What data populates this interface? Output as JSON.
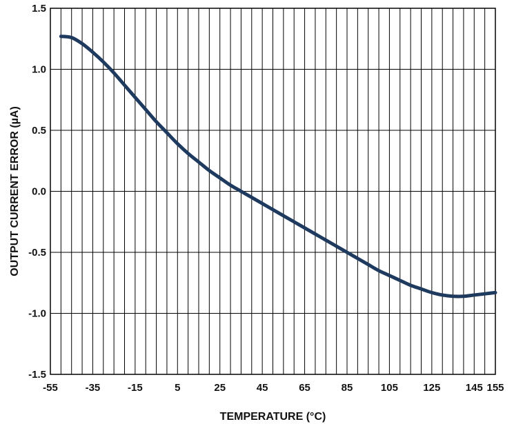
{
  "chart_data": {
    "type": "line",
    "title": "",
    "xlabel": "TEMPERATURE (°C)",
    "ylabel": "OUTPUT CURRENT ERROR (µA)",
    "xlim": [
      -55,
      155
    ],
    "ylim": [
      -1.5,
      1.5
    ],
    "xticks": [
      -55,
      -35,
      -15,
      5,
      25,
      45,
      65,
      85,
      105,
      125,
      145,
      155
    ],
    "xtick_labels": [
      "-55",
      "-35",
      "-15",
      "5",
      "25",
      "45",
      "65",
      "85",
      "105",
      "125",
      "145",
      "155"
    ],
    "yticks": [
      1.5,
      1.0,
      0.5,
      0.0,
      -0.5,
      -1.0,
      -1.5
    ],
    "ytick_labels": [
      "1.5",
      "1.0",
      "0.5",
      "0.0",
      "-0.5",
      "-1.0",
      "-1.5"
    ],
    "grid": true,
    "minor_x_grid_step": 5,
    "line_color": "#1f3a5f",
    "series": [
      {
        "name": "",
        "x": [
          -50,
          -45,
          -40,
          -35,
          -30,
          -25,
          -20,
          -15,
          -10,
          -5,
          0,
          5,
          10,
          15,
          20,
          25,
          30,
          35,
          40,
          45,
          50,
          55,
          60,
          65,
          70,
          75,
          80,
          85,
          90,
          95,
          100,
          105,
          110,
          115,
          120,
          125,
          130,
          135,
          140,
          145,
          150,
          155
        ],
        "y": [
          1.27,
          1.26,
          1.21,
          1.14,
          1.06,
          0.97,
          0.87,
          0.77,
          0.67,
          0.57,
          0.48,
          0.39,
          0.31,
          0.24,
          0.17,
          0.11,
          0.05,
          0.0,
          -0.05,
          -0.1,
          -0.15,
          -0.2,
          -0.25,
          -0.3,
          -0.35,
          -0.4,
          -0.45,
          -0.5,
          -0.55,
          -0.6,
          -0.65,
          -0.69,
          -0.73,
          -0.77,
          -0.8,
          -0.83,
          -0.85,
          -0.86,
          -0.86,
          -0.85,
          -0.84,
          -0.83
        ]
      }
    ]
  }
}
